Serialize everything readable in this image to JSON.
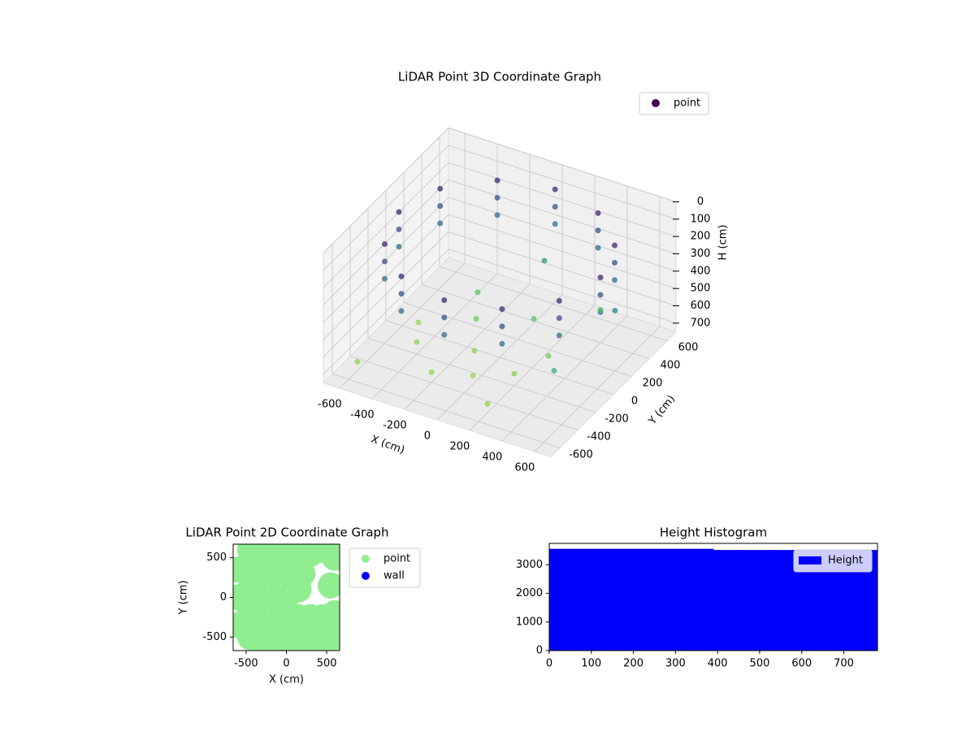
{
  "chart_data": [
    {
      "type": "scatter3d",
      "title": "LiDAR Point 3D Coordinate Graph",
      "xlabel": "X (cm)",
      "ylabel": "Y (cm)",
      "zlabel": "H (cm)",
      "xlim": [
        -700,
        700
      ],
      "ylim": [
        -700,
        700
      ],
      "zlim": [
        0,
        750
      ],
      "z_inverted": true,
      "xticks": [
        -600,
        -400,
        -200,
        0,
        200,
        400,
        600
      ],
      "yticks": [
        -600,
        -400,
        -200,
        0,
        200,
        400,
        600
      ],
      "zticks": [
        0,
        100,
        200,
        300,
        400,
        500,
        600,
        700
      ],
      "cmap": "viridis",
      "legend": "upper right",
      "grid": true,
      "series": [
        {
          "name": "point",
          "color": "#440154",
          "x": [
            620,
            537,
            310,
            0,
            -310,
            -537,
            -620,
            -537,
            -310,
            0,
            310,
            537,
            620,
            537,
            310,
            0,
            -310,
            -537,
            -620,
            -537,
            -310,
            0,
            310,
            537,
            620,
            537,
            310,
            0,
            -310,
            -537,
            -620,
            -537,
            -310,
            0,
            310,
            537,
            -400,
            -200,
            0,
            200,
            300,
            100,
            -300,
            -500,
            400,
            -100,
            200,
            -600,
            500,
            -200,
            0,
            600
          ],
          "y": [
            0,
            310,
            537,
            620,
            537,
            310,
            0,
            -310,
            -537,
            -620,
            -537,
            -310,
            0,
            310,
            537,
            620,
            537,
            310,
            0,
            -310,
            -537,
            -620,
            -537,
            -310,
            0,
            310,
            537,
            620,
            537,
            310,
            0,
            -310,
            -537,
            -620,
            -537,
            -310,
            -200,
            -400,
            -300,
            -200,
            0,
            200,
            300,
            0,
            400,
            -100,
            -500,
            -500,
            -300,
            100,
            500,
            200
          ],
          "z": [
            100,
            100,
            100,
            100,
            100,
            100,
            100,
            100,
            100,
            100,
            100,
            100,
            200,
            200,
            200,
            200,
            200,
            200,
            200,
            200,
            200,
            200,
            200,
            200,
            300,
            300,
            300,
            300,
            300,
            300,
            300,
            300,
            300,
            300,
            300,
            300,
            680,
            690,
            700,
            680,
            650,
            600,
            620,
            700,
            560,
            690,
            700,
            700,
            520,
            640,
            450,
            400
          ]
        }
      ]
    },
    {
      "type": "scatter",
      "title": "LiDAR Point 2D Coordinate Graph",
      "xlabel": "X (cm)",
      "ylabel": "Y (cm)",
      "xlim": [
        -660,
        660
      ],
      "ylim": [
        -670,
        670
      ],
      "xticks": [
        -500,
        0,
        500
      ],
      "yticks": [
        -500,
        0,
        500
      ],
      "legend": "outside right",
      "series": [
        {
          "name": "point",
          "color": "#90ee90",
          "x": [
            -600,
            -600,
            -600,
            -450,
            -450,
            -450,
            -450,
            -450,
            -300,
            -300,
            -300,
            -300,
            -300,
            -300,
            -150,
            -150,
            -150,
            -150,
            -150,
            -150,
            0,
            0,
            0,
            0,
            0,
            0,
            150,
            150,
            150,
            150,
            300,
            300,
            300,
            450,
            450,
            450,
            600,
            600,
            600,
            600,
            550,
            200
          ],
          "y": [
            -350,
            0,
            350,
            -500,
            -200,
            100,
            400,
            600,
            -600,
            -300,
            0,
            300,
            550,
            620,
            -600,
            -300,
            0,
            300,
            550,
            620,
            -600,
            -300,
            0,
            300,
            550,
            620,
            -550,
            -250,
            100,
            550,
            -550,
            -250,
            550,
            -550,
            -250,
            600,
            -500,
            -200,
            500,
            620,
            150,
            300
          ],
          "size": 7
        },
        {
          "name": "wall",
          "color": "#0000ff",
          "x": [],
          "y": [],
          "size": 7
        }
      ]
    },
    {
      "type": "histogram",
      "title": "Height Histogram",
      "xlim": [
        0,
        780
      ],
      "ylim": [
        0,
        3750
      ],
      "xticks": [
        0,
        100,
        200,
        300,
        400,
        500,
        600,
        700
      ],
      "yticks": [
        0,
        1000,
        2000,
        3000
      ],
      "legend": "upper right",
      "series": [
        {
          "name": "Height",
          "color": "#0000ff",
          "bins": [
            0,
            65,
            130,
            195,
            260,
            325,
            390,
            455,
            520,
            585,
            650,
            715,
            780
          ],
          "values": [
            3560,
            3560,
            3560,
            3560,
            3560,
            3560,
            3520,
            3520,
            3520,
            3520,
            3520,
            3520
          ]
        }
      ]
    }
  ]
}
